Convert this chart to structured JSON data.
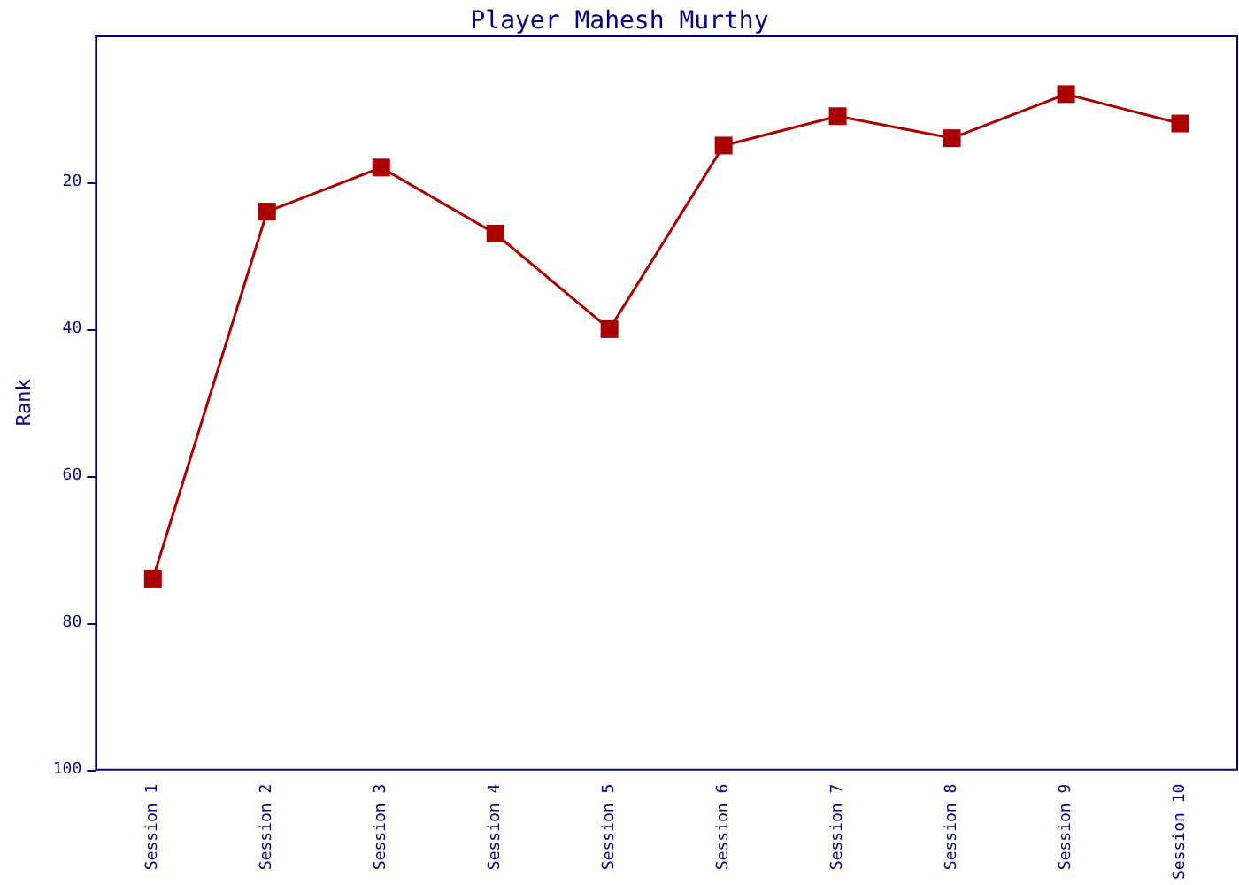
{
  "chart_data": {
    "type": "line",
    "title": "Player Mahesh Murthy",
    "ylabel": "Rank",
    "categories": [
      "Session 1",
      "Session 2",
      "Session 3",
      "Session 4",
      "Session 5",
      "Session 6",
      "Session 7",
      "Session 8",
      "Session 9",
      "Session 10"
    ],
    "series": [
      {
        "color": "#aa0000",
        "values": [
          74,
          24,
          18,
          27,
          40,
          15,
          11,
          14,
          8,
          12
        ]
      }
    ],
    "ylim": [
      100,
      0
    ],
    "yticks": [
      20,
      40,
      60,
      80,
      100
    ],
    "grid": false,
    "marker": "square",
    "line_style": "solid"
  }
}
